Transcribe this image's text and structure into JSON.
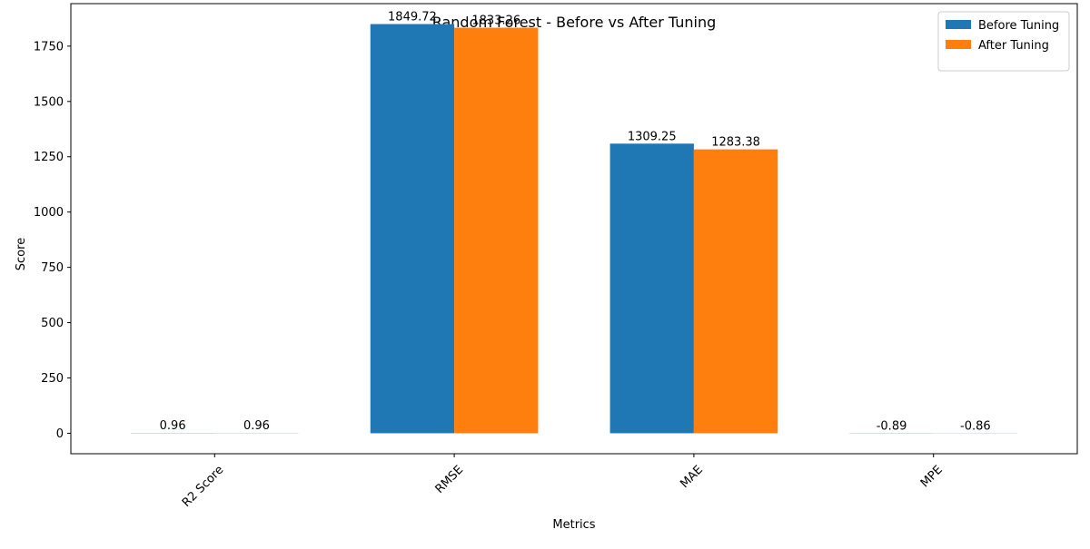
{
  "chart_data": {
    "type": "bar",
    "title": "Random Forest - Before vs After Tuning",
    "xlabel": "Metrics",
    "ylabel": "Score",
    "categories": [
      "R2 Score",
      "RMSE",
      "MAE",
      "MPE"
    ],
    "series": [
      {
        "name": "Before Tuning",
        "color": "#1f77b4",
        "values": [
          0.96,
          1849.72,
          1309.25,
          -0.89
        ],
        "labels": [
          "0.96",
          "1849.72",
          "1309.25",
          "-0.89"
        ]
      },
      {
        "name": "After Tuning",
        "color": "#ff7f0e",
        "values": [
          0.96,
          1833.26,
          1283.38,
          -0.86
        ],
        "labels": [
          "0.96",
          "1833.26",
          "1283.38",
          "-0.86"
        ]
      }
    ],
    "ylim": [
      -92.5,
      1942.2
    ],
    "yticks": [
      0,
      250,
      500,
      750,
      1000,
      1250,
      1500,
      1750
    ],
    "ytick_labels": [
      "0",
      "250",
      "500",
      "750",
      "1000",
      "1250",
      "1500",
      "1750"
    ],
    "xtick_rotation": 45,
    "grid": false,
    "legend_position": "top-right"
  }
}
